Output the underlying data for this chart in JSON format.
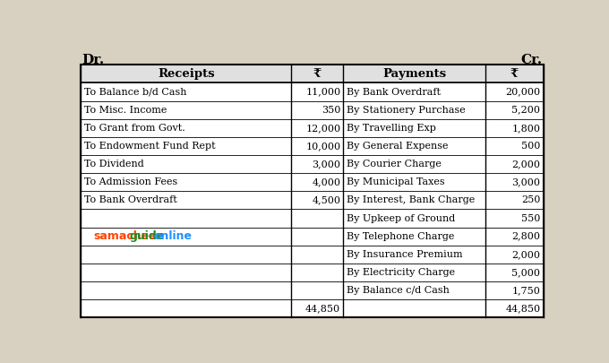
{
  "title_left": "Dr.",
  "title_right": "Cr.",
  "headers": [
    "Receipts",
    "₹",
    "Payments",
    "₹"
  ],
  "receipts": [
    [
      "To Balance b/d Cash",
      "11,000"
    ],
    [
      "To Misc. Income",
      "350"
    ],
    [
      "To Grant from Govt.",
      "12,000"
    ],
    [
      "To Endowment Fund Rept",
      "10,000"
    ],
    [
      "To Dividend",
      "3,000"
    ],
    [
      "To Admission Fees",
      "4,000"
    ],
    [
      "To Bank Overdraft",
      "4,500"
    ],
    [
      "",
      ""
    ],
    [
      "",
      ""
    ],
    [
      "",
      ""
    ],
    [
      "",
      ""
    ],
    [
      "",
      ""
    ],
    [
      "",
      "44,850"
    ]
  ],
  "payments": [
    [
      "By Bank Overdraft",
      "20,000"
    ],
    [
      "By Stationery Purchase",
      "5,200"
    ],
    [
      "By Travelling Exp",
      "1,800"
    ],
    [
      "By General Expense",
      "500"
    ],
    [
      "By Courier Charge",
      "2,000"
    ],
    [
      "By Municipal Taxes",
      "3,000"
    ],
    [
      "By Interest, Bank Charge",
      "250"
    ],
    [
      "By Upkeep of Ground",
      "550"
    ],
    [
      "By Telephone Charge",
      "2,800"
    ],
    [
      "By Insurance Premium",
      "2,000"
    ],
    [
      "By Electricity Charge",
      "5,000"
    ],
    [
      "By Balance c/d Cash",
      "1,750"
    ],
    [
      "",
      "44,850"
    ]
  ],
  "watermark_parts": [
    {
      "text": "samacheer",
      "color": "#FF4500"
    },
    {
      "text": "guide",
      "color": "#228B22"
    },
    {
      "text": ".",
      "color": "#FF4500"
    },
    {
      "text": "online",
      "color": "#1E90FF"
    }
  ],
  "bg_color": "#ffffff",
  "header_bg": "#e0e0e0",
  "border_color": "#000000",
  "text_color": "#000000",
  "fig_bg": "#d8d0c0"
}
